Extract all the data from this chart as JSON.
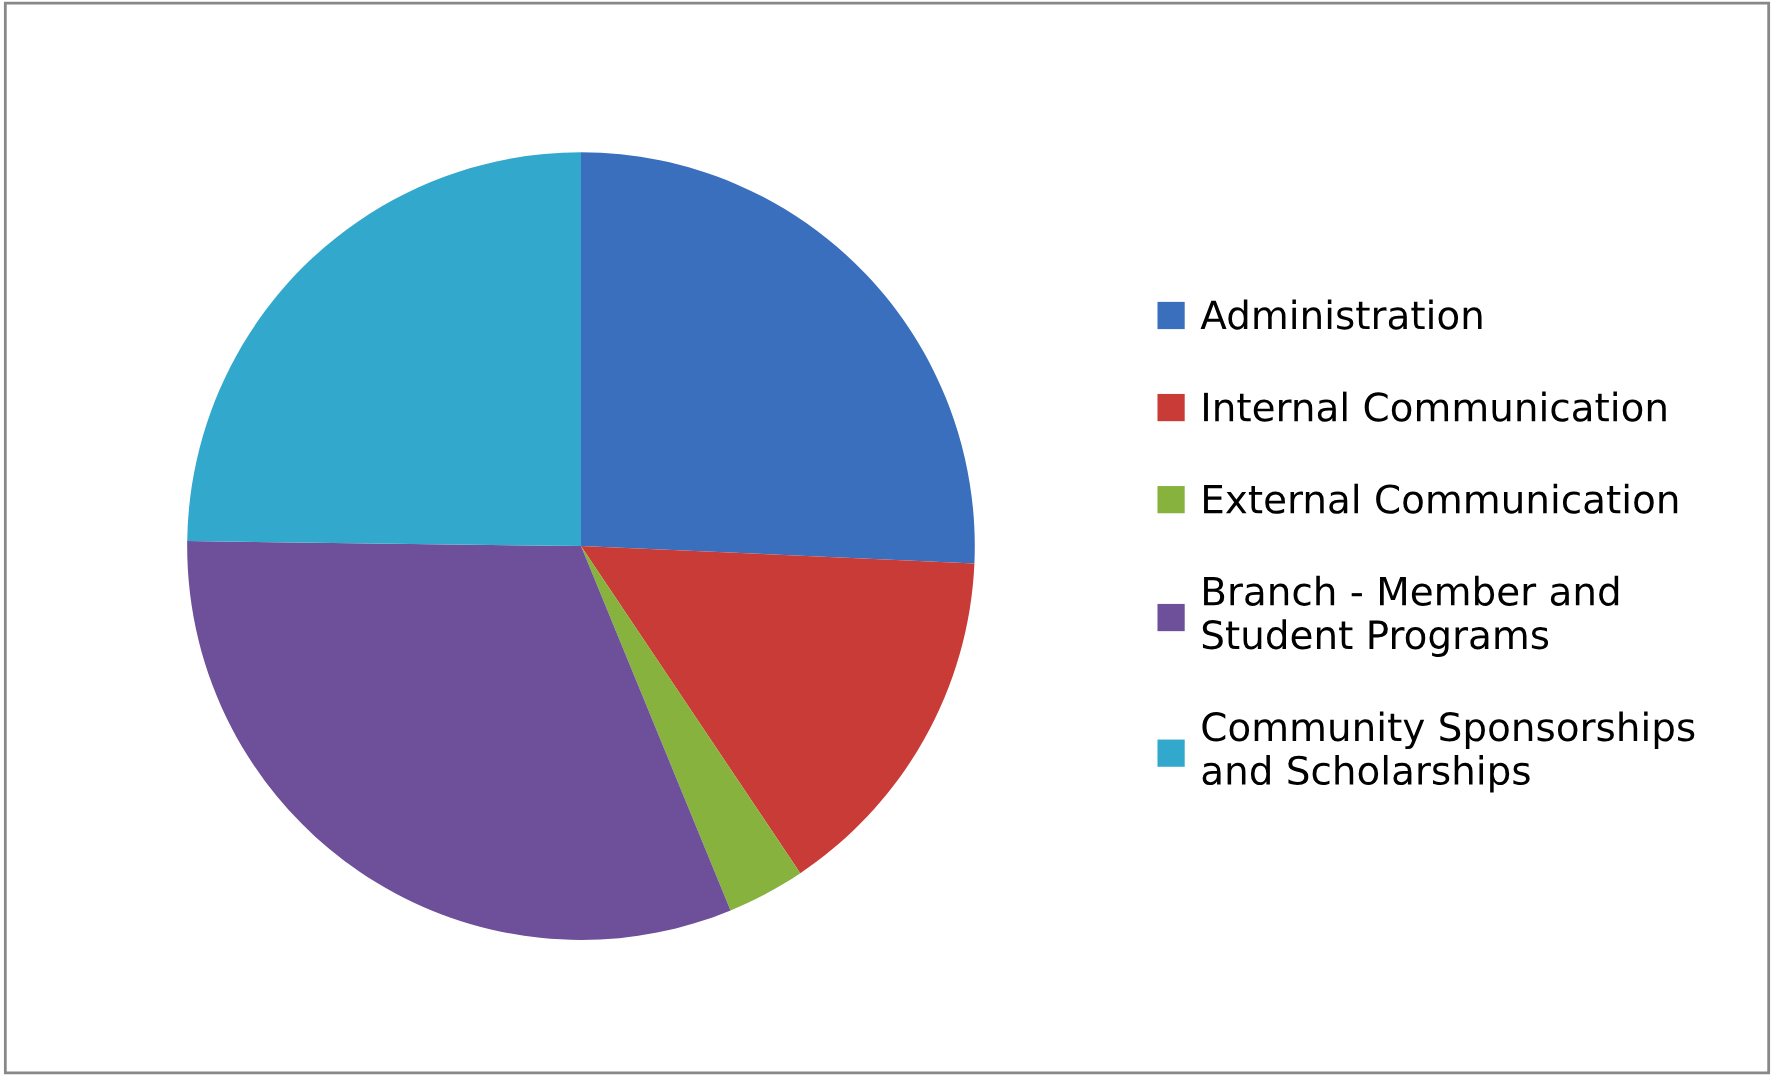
{
  "chart_data": {
    "type": "pie",
    "categories": [
      "Administration",
      "Internal Communication",
      "External Communication",
      "Branch - Member and\nStudent Programs",
      "Community Sponsorships\nand Scholarships"
    ],
    "values": [
      25.7,
      14.9,
      3.2,
      31.4,
      24.8
    ],
    "colors": [
      "#3a6fbe",
      "#c93b37",
      "#86b23d",
      "#6d4f9a",
      "#32a8cc"
    ],
    "legend": "right"
  }
}
